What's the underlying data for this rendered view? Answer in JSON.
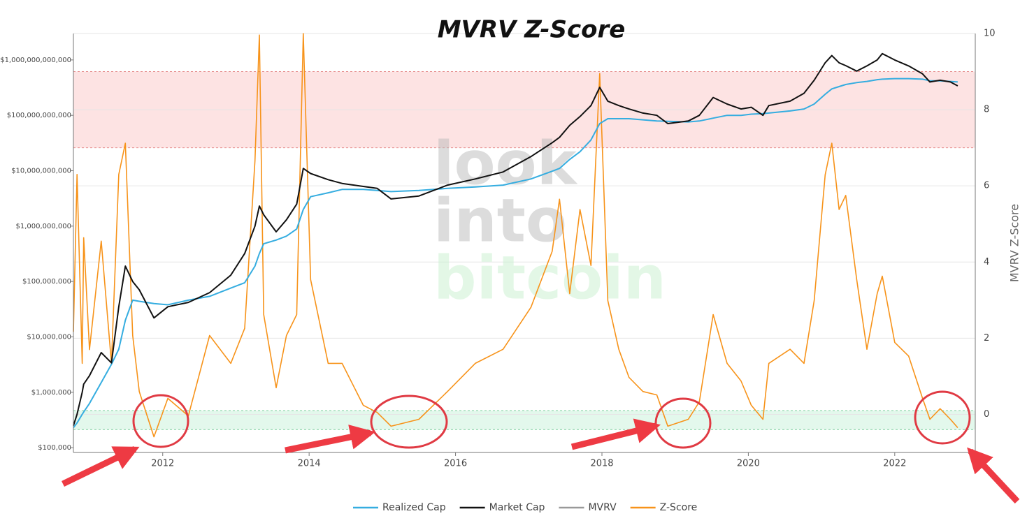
{
  "chart_data": {
    "type": "line",
    "title": "MVRV Z-Score",
    "y2label": "MVRV Z-Score",
    "watermark": [
      "look",
      "into",
      "bitcoin"
    ],
    "log_y": true,
    "grid": true,
    "legend": "bottom",
    "xlim": [
      2010.78,
      2023.1
    ],
    "xticks": [
      2012,
      2014,
      2016,
      2018,
      2020,
      2022
    ],
    "ylim": [
      82000,
      3000000000000
    ],
    "yticks": [
      {
        "value": 100000,
        "label": "$100,000"
      },
      {
        "value": 1000000,
        "label": "$1,000,000"
      },
      {
        "value": 10000000,
        "label": "$10,000,000"
      },
      {
        "value": 100000000,
        "label": "$100,000,000"
      },
      {
        "value": 1000000000,
        "label": "$1,000,000,000"
      },
      {
        "value": 10000000000,
        "label": "$10,000,000,000"
      },
      {
        "value": 100000000000,
        "label": "$100,000,000,000"
      },
      {
        "value": 1000000000000,
        "label": "$1,000,000,000,000"
      }
    ],
    "y2lim": [
      -1,
      10
    ],
    "y2ticks": [
      0,
      2,
      4,
      6,
      8,
      10
    ],
    "zones": [
      {
        "from": 7,
        "to": 9,
        "color": "#fde3e3",
        "edge": "#e58a8a"
      },
      {
        "from": -0.4,
        "to": 0.1,
        "color": "#e3f8ec",
        "edge": "#7fcf9f"
      }
    ],
    "x": [
      2010.78,
      2010.83,
      2010.9,
      2010.92,
      2011.0,
      2011.16,
      2011.3,
      2011.4,
      2011.49,
      2011.59,
      2011.68,
      2011.88,
      2012.07,
      2012.35,
      2012.64,
      2012.93,
      2013.12,
      2013.26,
      2013.32,
      2013.38,
      2013.55,
      2013.69,
      2013.83,
      2013.92,
      2014.02,
      2014.26,
      2014.45,
      2014.74,
      2014.93,
      2015.12,
      2015.5,
      2015.89,
      2016.27,
      2016.65,
      2017.03,
      2017.32,
      2017.42,
      2017.56,
      2017.7,
      2017.85,
      2017.97,
      2018.08,
      2018.23,
      2018.37,
      2018.56,
      2018.75,
      2018.9,
      2019.18,
      2019.33,
      2019.52,
      2019.71,
      2019.9,
      2020.04,
      2020.2,
      2020.28,
      2020.57,
      2020.76,
      2020.9,
      2021.05,
      2021.14,
      2021.24,
      2021.33,
      2021.48,
      2021.62,
      2021.76,
      2021.83,
      2022.0,
      2022.19,
      2022.38,
      2022.48,
      2022.62,
      2022.76,
      2022.86
    ],
    "series": [
      {
        "name": "Realized Cap",
        "color": "#35ade0",
        "axis": "y",
        "values": [
          230000.0,
          280000.0,
          400000.0,
          440000.0,
          630000.0,
          1500000.0,
          3200000.0,
          6000000.0,
          20000000.0,
          46000000.0,
          44000000.0,
          40000000.0,
          38000000.0,
          46000000.0,
          54000000.0,
          76000000.0,
          95000000.0,
          190000000.0,
          320000000.0,
          480000000.0,
          560000000.0,
          660000000.0,
          890000000.0,
          2000000000.0,
          3400000000.0,
          4000000000.0,
          4600000000.0,
          4600000000.0,
          4400000000.0,
          4200000000.0,
          4400000000.0,
          4800000000.0,
          5100000000.0,
          5500000000.0,
          7100000000.0,
          9800000000.0,
          11000000000.0,
          16000000000.0,
          22000000000.0,
          36000000000.0,
          71000000000.0,
          87000000000.0,
          87000000000.0,
          87000000000.0,
          83000000000.0,
          79000000000.0,
          78000000000.0,
          76000000000.0,
          79000000000.0,
          89000000000.0,
          100000000000.0,
          100000000000.0,
          105000000000.0,
          107000000000.0,
          110000000000.0,
          120000000000.0,
          130000000000.0,
          160000000000.0,
          240000000000.0,
          300000000000.0,
          330000000000.0,
          360000000000.0,
          390000000000.0,
          410000000000.0,
          440000000000.0,
          450000000000.0,
          460000000000.0,
          460000000000.0,
          450000000000.0,
          420000000000.0,
          420000000000.0,
          410000000000.0,
          400000000000.0
        ]
      },
      {
        "name": "Market Cap",
        "color": "#111111",
        "axis": "y",
        "values": [
          250000.0,
          400000.0,
          1000000.0,
          1400000.0,
          2000000.0,
          5200000.0,
          3400000.0,
          35000000.0,
          190000000.0,
          100000000.0,
          71000000.0,
          22000000.0,
          35000000.0,
          42000000.0,
          63000000.0,
          130000000.0,
          320000000.0,
          1000000000.0,
          2300000000.0,
          1600000000.0,
          790000000.0,
          1300000000.0,
          2500000000.0,
          11000000000.0,
          8900000000.0,
          6900000000.0,
          5900000000.0,
          5200000000.0,
          4800000000.0,
          3100000000.0,
          3500000000.0,
          5500000000.0,
          7100000000.0,
          9500000000.0,
          18000000000.0,
          32000000000.0,
          40000000000.0,
          66000000000.0,
          95000000000.0,
          150000000000.0,
          320000000000.0,
          180000000000.0,
          150000000000.0,
          130000000000.0,
          110000000000.0,
          100000000000.0,
          71000000000.0,
          79000000000.0,
          100000000000.0,
          210000000000.0,
          160000000000.0,
          130000000000.0,
          140000000000.0,
          100000000000.0,
          150000000000.0,
          180000000000.0,
          250000000000.0,
          430000000000.0,
          890000000000.0,
          1200000000000.0,
          890000000000.0,
          790000000000.0,
          630000000000.0,
          780000000000.0,
          1000000000000.0,
          1300000000000.0,
          1000000000000.0,
          780000000000.0,
          560000000000.0,
          400000000000.0,
          430000000000.0,
          400000000000.0,
          340000000000.0
        ]
      },
      {
        "name": "MVRV",
        "color": "#999999",
        "axis": "y2",
        "values": [
          null,
          null,
          null,
          null,
          null,
          null,
          null,
          null,
          null,
          null,
          null,
          null,
          null,
          null,
          null,
          null,
          null,
          null,
          null,
          null,
          null,
          null,
          null,
          null,
          null,
          null,
          null,
          null,
          null,
          null,
          null,
          null,
          null,
          null,
          null,
          null,
          null,
          null,
          null,
          null,
          null,
          null,
          null,
          null,
          null,
          null,
          null,
          null,
          null,
          null,
          null,
          null,
          null,
          null,
          null,
          null,
          null,
          null,
          null,
          null,
          null,
          null,
          null,
          null,
          null,
          null,
          null,
          null,
          null,
          null,
          null,
          null,
          null
        ]
      },
      {
        "name": "Z-Score",
        "color": "#f7931a",
        "axis": "y2",
        "values": [
          2.17,
          6.3,
          1.34,
          4.64,
          1.7,
          4.55,
          1.34,
          6.3,
          7.12,
          2.07,
          0.6,
          -0.59,
          0.42,
          -0.04,
          2.07,
          1.34,
          2.26,
          6.66,
          9.96,
          2.62,
          0.7,
          2.07,
          2.62,
          10,
          3.54,
          1.34,
          1.34,
          0.24,
          0.05,
          -0.31,
          -0.13,
          0.6,
          1.34,
          1.71,
          2.81,
          4.28,
          5.65,
          3.17,
          5.38,
          3.91,
          8.95,
          2.99,
          1.71,
          0.97,
          0.6,
          0.51,
          -0.31,
          -0.13,
          0.33,
          2.62,
          1.34,
          0.88,
          0.24,
          -0.13,
          1.34,
          1.71,
          1.34,
          2.99,
          6.29,
          7.12,
          5.38,
          5.75,
          3.54,
          1.71,
          3.17,
          3.63,
          1.89,
          1.53,
          0.42,
          -0.13,
          0.15,
          -0.13,
          -0.35
        ]
      }
    ]
  }
}
